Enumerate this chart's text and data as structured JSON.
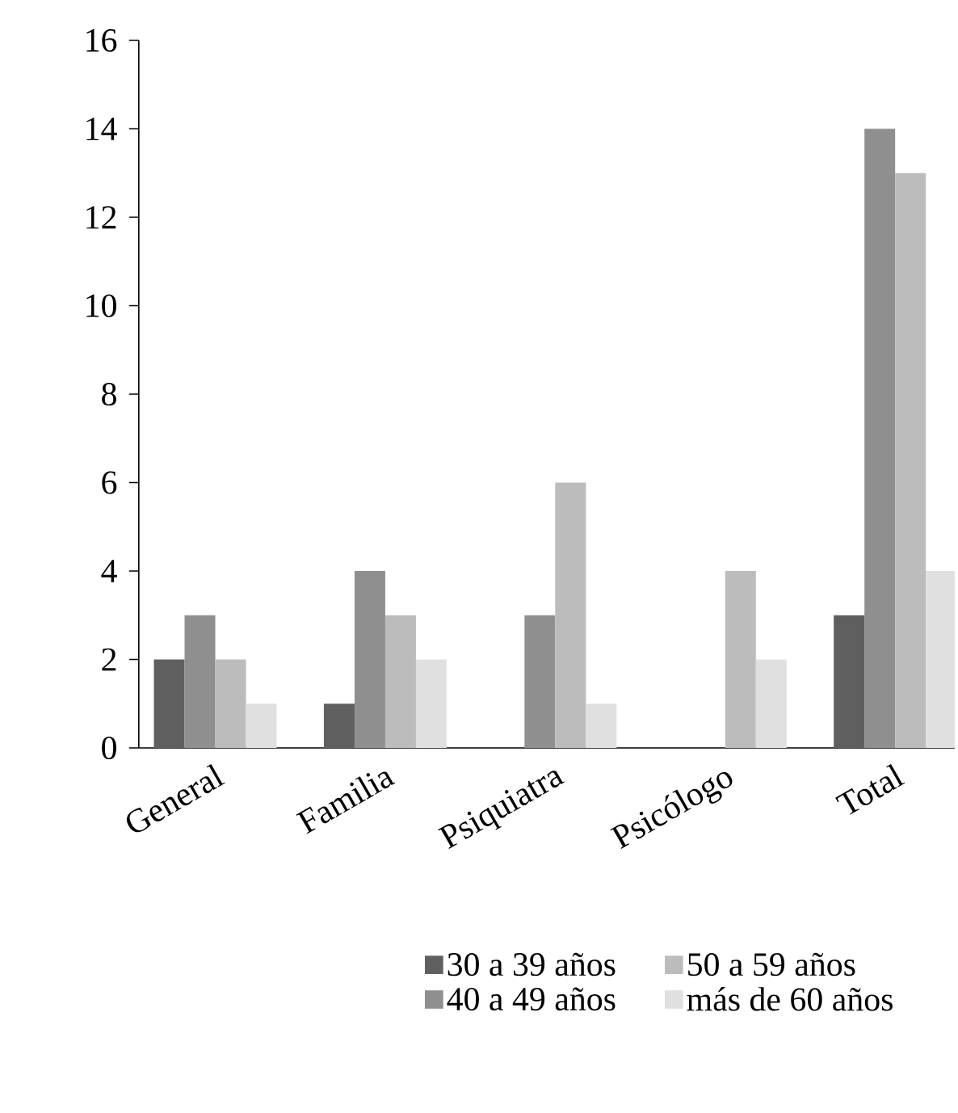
{
  "chart_data": {
    "type": "bar",
    "categories": [
      "General",
      "Familia",
      "Psiquiatra",
      "Psicólogo",
      "Total"
    ],
    "series": [
      {
        "name": "30 a 39 años",
        "color": "#5f5f5f",
        "values": [
          2,
          1,
          0,
          0,
          3
        ]
      },
      {
        "name": "40 a 49 años",
        "color": "#8f8f8f",
        "values": [
          3,
          4,
          3,
          0,
          14
        ]
      },
      {
        "name": "50 a 59 años",
        "color": "#bcbcbc",
        "values": [
          2,
          3,
          6,
          4,
          13
        ]
      },
      {
        "name": "más de 60 años",
        "color": "#e0e0e0",
        "values": [
          1,
          2,
          1,
          2,
          4
        ]
      }
    ],
    "ylim": [
      0,
      16
    ],
    "yticks": [
      0,
      2,
      4,
      6,
      8,
      10,
      12,
      14,
      16
    ],
    "grid": false,
    "legend": "bottom"
  }
}
